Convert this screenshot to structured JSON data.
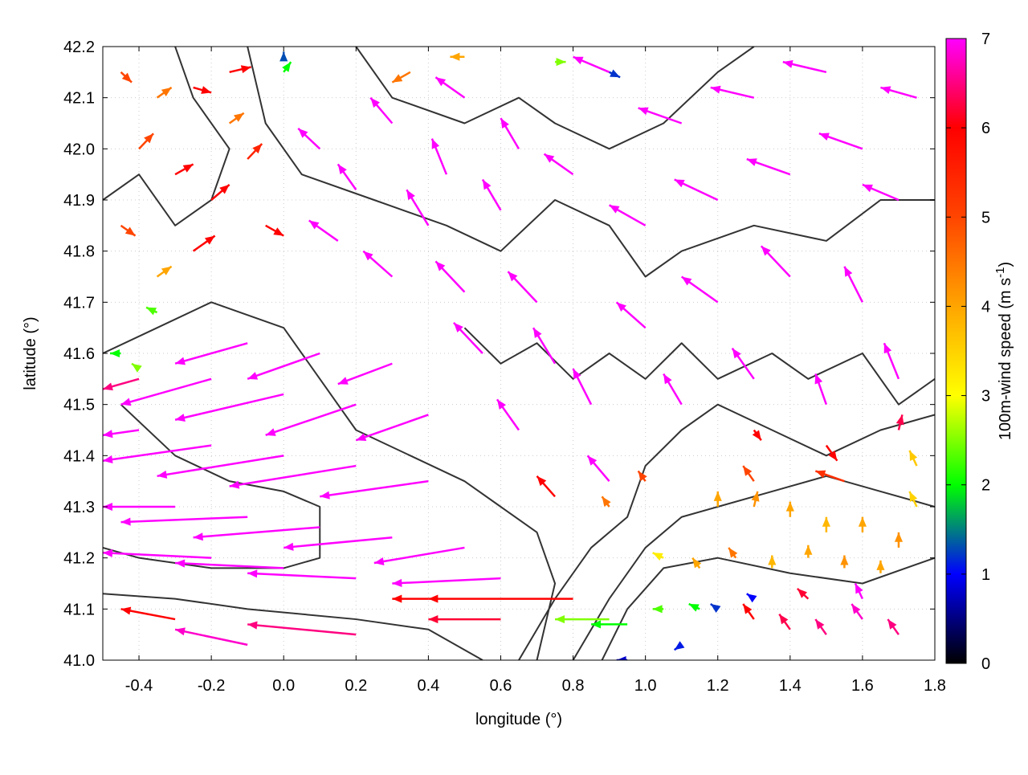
{
  "chart_data": {
    "type": "vector-field",
    "xlabel": "longitude (°)",
    "ylabel": "latitude (°)",
    "xlim": [
      -0.5,
      1.8
    ],
    "ylim": [
      41.0,
      42.2
    ],
    "xticks": [
      "-0.4",
      "-0.2",
      "0.0",
      "0.2",
      "0.4",
      "0.6",
      "0.8",
      "1.0",
      "1.2",
      "1.4",
      "1.6",
      "1.8"
    ],
    "yticks": [
      "41.0",
      "41.1",
      "41.2",
      "41.3",
      "41.4",
      "41.5",
      "41.6",
      "41.7",
      "41.8",
      "41.9",
      "42.0",
      "42.1",
      "42.2"
    ],
    "grid": true,
    "colorbar": {
      "label": "100m-wind speed (m s",
      "label_sup": "-1",
      "label_end": ")",
      "range": [
        0,
        7
      ],
      "ticks": [
        "0",
        "1",
        "2",
        "3",
        "4",
        "5",
        "6",
        "7"
      ],
      "palette": [
        "#000000",
        "#0000ff",
        "#00ff00",
        "#ffff00",
        "#ffa500",
        "#ff4500",
        "#ff0000",
        "#ff00ff"
      ]
    },
    "contour_color": "#333333",
    "vector_fields": [
      "lon",
      "lat",
      "dlon",
      "dlat",
      "speed"
    ],
    "vectors": [
      [
        -0.4,
        41.45,
        -0.1,
        -0.01,
        7
      ],
      [
        -0.2,
        41.42,
        -0.3,
        -0.03,
        7
      ],
      [
        0.0,
        41.4,
        -0.35,
        -0.04,
        7
      ],
      [
        0.2,
        41.38,
        -0.35,
        -0.04,
        7
      ],
      [
        0.4,
        41.35,
        -0.3,
        -0.03,
        7
      ],
      [
        -0.3,
        41.3,
        -0.2,
        0,
        7
      ],
      [
        -0.1,
        41.28,
        -0.35,
        -0.01,
        7
      ],
      [
        0.1,
        41.26,
        -0.35,
        -0.02,
        7
      ],
      [
        0.3,
        41.24,
        -0.3,
        -0.02,
        7
      ],
      [
        0.5,
        41.22,
        -0.25,
        -0.03,
        7
      ],
      [
        -0.2,
        41.2,
        -0.3,
        0.01,
        7
      ],
      [
        0.0,
        41.18,
        -0.3,
        0.01,
        7
      ],
      [
        0.2,
        41.16,
        -0.3,
        0.01,
        7
      ],
      [
        0.6,
        41.16,
        -0.3,
        -0.01,
        7
      ],
      [
        -0.4,
        41.55,
        -0.1,
        -0.02,
        6.5
      ],
      [
        -0.2,
        41.55,
        -0.25,
        -0.05,
        7
      ],
      [
        0.0,
        41.52,
        -0.3,
        -0.05,
        7
      ],
      [
        0.2,
        41.5,
        -0.25,
        -0.06,
        7
      ],
      [
        0.4,
        41.48,
        -0.2,
        -0.05,
        7
      ],
      [
        -0.1,
        41.62,
        -0.2,
        -0.04,
        7
      ],
      [
        0.1,
        41.6,
        -0.2,
        -0.05,
        7
      ],
      [
        0.3,
        41.58,
        -0.15,
        -0.04,
        7
      ],
      [
        0.4,
        41.12,
        -0.1,
        0,
        6
      ],
      [
        0.8,
        41.12,
        -0.4,
        0,
        6
      ],
      [
        0.6,
        41.08,
        -0.2,
        0,
        6.2
      ],
      [
        0.9,
        41.08,
        -0.15,
        0,
        2.5
      ],
      [
        0.95,
        41.07,
        -0.1,
        0,
        2
      ],
      [
        0.2,
        41.05,
        -0.3,
        0.02,
        6.5
      ],
      [
        -0.3,
        41.08,
        -0.15,
        0.02,
        6
      ],
      [
        -0.1,
        41.03,
        -0.2,
        0.03,
        6.8
      ],
      [
        0.3,
        41.75,
        -0.08,
        0.05,
        7
      ],
      [
        0.5,
        41.72,
        -0.08,
        0.06,
        7
      ],
      [
        0.7,
        41.7,
        -0.08,
        0.06,
        7
      ],
      [
        0.4,
        41.85,
        -0.06,
        0.07,
        7
      ],
      [
        0.6,
        41.88,
        -0.05,
        0.06,
        7
      ],
      [
        0.2,
        41.92,
        -0.05,
        0.05,
        7
      ],
      [
        0.55,
        41.6,
        -0.08,
        0.06,
        7
      ],
      [
        0.75,
        41.58,
        -0.06,
        0.07,
        7
      ],
      [
        0.45,
        41.95,
        -0.04,
        0.07,
        7
      ],
      [
        0.65,
        42.0,
        -0.05,
        0.06,
        7
      ],
      [
        0.3,
        42.05,
        -0.06,
        0.05,
        7
      ],
      [
        0.5,
        42.1,
        -0.08,
        0.04,
        7
      ],
      [
        0.1,
        42.0,
        -0.06,
        0.04,
        7
      ],
      [
        0.15,
        41.82,
        -0.08,
        0.04,
        7
      ],
      [
        0.85,
        41.5,
        -0.05,
        0.07,
        7
      ],
      [
        0.65,
        41.45,
        -0.06,
        0.06,
        7
      ],
      [
        0.9,
        41.35,
        -0.06,
        0.05,
        7
      ],
      [
        0.75,
        41.32,
        -0.05,
        0.04,
        6
      ],
      [
        1.0,
        41.85,
        -0.1,
        0.04,
        7
      ],
      [
        1.2,
        41.9,
        -0.12,
        0.04,
        7
      ],
      [
        1.4,
        41.95,
        -0.12,
        0.03,
        7
      ],
      [
        1.6,
        42.0,
        -0.12,
        0.03,
        7
      ],
      [
        1.1,
        42.05,
        -0.12,
        0.03,
        7
      ],
      [
        1.3,
        42.1,
        -0.12,
        0.02,
        7
      ],
      [
        1.5,
        42.15,
        -0.12,
        0.02,
        7
      ],
      [
        1.7,
        41.9,
        -0.1,
        0.03,
        7
      ],
      [
        1.0,
        41.65,
        -0.08,
        0.05,
        7
      ],
      [
        1.2,
        41.7,
        -0.1,
        0.05,
        7
      ],
      [
        1.4,
        41.75,
        -0.08,
        0.06,
        7
      ],
      [
        1.6,
        41.7,
        -0.05,
        0.07,
        7
      ],
      [
        1.7,
        41.55,
        -0.04,
        0.07,
        7
      ],
      [
        1.3,
        41.55,
        -0.06,
        0.06,
        7
      ],
      [
        1.1,
        41.5,
        -0.05,
        0.06,
        7
      ],
      [
        0.9,
        42.15,
        -0.1,
        0.03,
        7
      ],
      [
        0.8,
        41.95,
        -0.08,
        0.04,
        7
      ],
      [
        1.75,
        42.1,
        -0.1,
        0.02,
        7
      ],
      [
        1.5,
        41.5,
        -0.03,
        0.06,
        7
      ],
      [
        -0.45,
        42.15,
        0.03,
        -0.02,
        5
      ],
      [
        -0.35,
        42.1,
        0.04,
        0.02,
        4.5
      ],
      [
        -0.25,
        42.12,
        0.05,
        -0.01,
        6
      ],
      [
        -0.15,
        42.15,
        0.06,
        0.01,
        6
      ],
      [
        -0.4,
        42.0,
        0.04,
        0.03,
        5
      ],
      [
        -0.3,
        41.95,
        0.05,
        0.02,
        6
      ],
      [
        -0.2,
        41.9,
        0.05,
        0.03,
        6
      ],
      [
        -0.1,
        41.98,
        0.04,
        0.03,
        5.5
      ],
      [
        -0.45,
        41.85,
        0.04,
        -0.02,
        5
      ],
      [
        -0.35,
        41.75,
        0.04,
        0.02,
        4
      ],
      [
        -0.25,
        41.8,
        0.06,
        0.03,
        6
      ],
      [
        -0.35,
        41.68,
        -0.03,
        0.01,
        2.3
      ],
      [
        -0.45,
        41.6,
        -0.03,
        0,
        2
      ],
      [
        -0.4,
        41.57,
        -0.02,
        0.01,
        2.5
      ],
      [
        -0.15,
        42.05,
        0.04,
        0.02,
        4.5
      ],
      [
        0.0,
        42.15,
        0.02,
        0.02,
        2
      ],
      [
        -0.05,
        41.85,
        0.05,
        -0.02,
        6
      ],
      [
        1.2,
        41.3,
        0,
        0.03,
        4
      ],
      [
        1.3,
        41.3,
        0.01,
        0.03,
        4.2
      ],
      [
        1.4,
        41.28,
        0,
        0.03,
        4
      ],
      [
        1.5,
        41.25,
        0,
        0.03,
        3.8
      ],
      [
        1.6,
        41.25,
        0,
        0.03,
        4
      ],
      [
        1.7,
        41.22,
        0,
        0.03,
        4.2
      ],
      [
        1.25,
        41.2,
        -0.02,
        0.02,
        4.5
      ],
      [
        1.35,
        41.18,
        0,
        0.025,
        3.8
      ],
      [
        1.45,
        41.2,
        0,
        0.025,
        4
      ],
      [
        1.55,
        41.18,
        0,
        0.025,
        4.2
      ],
      [
        1.65,
        41.17,
        0,
        0.025,
        4
      ],
      [
        1.75,
        41.3,
        -0.02,
        0.03,
        3.5
      ],
      [
        1.75,
        41.38,
        -0.02,
        0.03,
        3.6
      ],
      [
        1.15,
        41.18,
        -0.02,
        0.02,
        4
      ],
      [
        1.05,
        41.2,
        -0.03,
        0.01,
        3.2
      ],
      [
        0.9,
        41.3,
        -0.02,
        0.02,
        4.5
      ],
      [
        1.0,
        41.35,
        -0.02,
        0.02,
        5
      ],
      [
        1.3,
        41.35,
        -0.03,
        0.03,
        5
      ],
      [
        1.3,
        41.08,
        -0.03,
        0.03,
        6
      ],
      [
        1.4,
        41.06,
        -0.03,
        0.03,
        6.3
      ],
      [
        1.5,
        41.05,
        -0.03,
        0.03,
        6.5
      ],
      [
        1.6,
        41.08,
        -0.03,
        0.03,
        6.8
      ],
      [
        1.7,
        41.05,
        -0.03,
        0.03,
        6.5
      ],
      [
        1.45,
        41.12,
        -0.03,
        0.02,
        6.2
      ],
      [
        1.6,
        41.12,
        -0.02,
        0.03,
        7
      ],
      [
        1.2,
        41.1,
        -0.02,
        0.01,
        1.2
      ],
      [
        1.15,
        41.1,
        -0.03,
        0.01,
        2
      ],
      [
        1.3,
        41.12,
        -0.02,
        0.01,
        1.0
      ],
      [
        1.1,
        41.03,
        -0.02,
        -0.01,
        1.1
      ],
      [
        0.95,
        41.0,
        -0.03,
        0,
        0.8
      ],
      [
        1.05,
        41.1,
        -0.03,
        0,
        2.3
      ],
      [
        1.3,
        41.45,
        0.02,
        -0.02,
        6
      ],
      [
        1.5,
        41.42,
        0.03,
        -0.03,
        6
      ],
      [
        1.7,
        41.45,
        0.01,
        0.03,
        6.3
      ],
      [
        1.55,
        41.35,
        -0.08,
        0.02,
        5.3
      ],
      [
        0.75,
        42.17,
        0.03,
        0,
        2.5
      ],
      [
        0.9,
        42.15,
        0.03,
        -0.01,
        1.2
      ],
      [
        0.0,
        42.18,
        0,
        0.01,
        1.3
      ],
      [
        0.5,
        42.18,
        -0.04,
        0,
        4
      ],
      [
        0.35,
        42.15,
        -0.05,
        -0.02,
        4.5
      ]
    ],
    "contours": [
      [
        [
          0.65,
          41.0
        ],
        [
          0.75,
          41.12
        ],
        [
          0.85,
          41.22
        ],
        [
          0.95,
          41.28
        ],
        [
          1.0,
          41.38
        ],
        [
          1.1,
          41.45
        ],
        [
          1.2,
          41.5
        ],
        [
          1.35,
          41.45
        ],
        [
          1.5,
          41.4
        ],
        [
          1.65,
          41.45
        ],
        [
          1.8,
          41.48
        ]
      ],
      [
        [
          0.8,
          41.0
        ],
        [
          0.9,
          41.12
        ],
        [
          1.0,
          41.22
        ],
        [
          1.1,
          41.28
        ],
        [
          1.2,
          41.3
        ],
        [
          1.35,
          41.33
        ],
        [
          1.5,
          41.36
        ],
        [
          1.65,
          41.33
        ],
        [
          1.8,
          41.3
        ]
      ],
      [
        [
          0.88,
          41.0
        ],
        [
          0.95,
          41.1
        ],
        [
          1.05,
          41.18
        ],
        [
          1.2,
          41.2
        ],
        [
          1.4,
          41.17
        ],
        [
          1.6,
          41.15
        ],
        [
          1.8,
          41.2
        ]
      ],
      [
        [
          -0.5,
          41.13
        ],
        [
          -0.3,
          41.12
        ],
        [
          -0.1,
          41.1
        ],
        [
          0.2,
          41.08
        ],
        [
          0.4,
          41.06
        ],
        [
          0.55,
          41.0
        ]
      ],
      [
        [
          -0.5,
          41.6
        ],
        [
          -0.35,
          41.65
        ],
        [
          -0.2,
          41.7
        ],
        [
          0.0,
          41.65
        ],
        [
          0.1,
          41.55
        ],
        [
          0.2,
          41.45
        ],
        [
          0.35,
          41.4
        ],
        [
          0.5,
          41.35
        ],
        [
          0.6,
          41.3
        ],
        [
          0.7,
          41.25
        ],
        [
          0.75,
          41.15
        ],
        [
          0.7,
          41.0
        ]
      ],
      [
        [
          -0.45,
          41.5
        ],
        [
          -0.3,
          41.4
        ],
        [
          -0.15,
          41.35
        ],
        [
          0.0,
          41.33
        ],
        [
          0.1,
          41.3
        ],
        [
          0.1,
          41.2
        ],
        [
          0.0,
          41.18
        ],
        [
          -0.2,
          41.18
        ],
        [
          -0.4,
          41.2
        ],
        [
          -0.5,
          41.22
        ]
      ],
      [
        [
          -0.1,
          42.2
        ],
        [
          -0.05,
          42.05
        ],
        [
          0.05,
          41.95
        ],
        [
          0.25,
          41.9
        ],
        [
          0.45,
          41.85
        ],
        [
          0.6,
          41.8
        ],
        [
          0.75,
          41.9
        ],
        [
          0.9,
          41.85
        ],
        [
          1.0,
          41.75
        ],
        [
          1.1,
          41.8
        ],
        [
          1.3,
          41.85
        ],
        [
          1.5,
          41.82
        ],
        [
          1.65,
          41.9
        ],
        [
          1.8,
          41.9
        ]
      ],
      [
        [
          0.2,
          42.2
        ],
        [
          0.3,
          42.1
        ],
        [
          0.5,
          42.05
        ],
        [
          0.65,
          42.1
        ],
        [
          0.75,
          42.05
        ],
        [
          0.9,
          42.0
        ],
        [
          1.05,
          42.05
        ],
        [
          1.2,
          42.15
        ],
        [
          1.3,
          42.2
        ]
      ],
      [
        [
          0.5,
          41.65
        ],
        [
          0.6,
          41.58
        ],
        [
          0.7,
          41.62
        ],
        [
          0.8,
          41.55
        ],
        [
          0.9,
          41.6
        ],
        [
          1.0,
          41.55
        ],
        [
          1.1,
          41.62
        ],
        [
          1.2,
          41.55
        ],
        [
          1.35,
          41.6
        ],
        [
          1.45,
          41.55
        ],
        [
          1.6,
          41.6
        ],
        [
          1.7,
          41.5
        ],
        [
          1.8,
          41.55
        ]
      ],
      [
        [
          -0.5,
          41.9
        ],
        [
          -0.4,
          41.95
        ],
        [
          -0.3,
          41.85
        ],
        [
          -0.2,
          41.9
        ],
        [
          -0.15,
          42.0
        ],
        [
          -0.25,
          42.1
        ],
        [
          -0.3,
          42.2
        ]
      ]
    ]
  }
}
